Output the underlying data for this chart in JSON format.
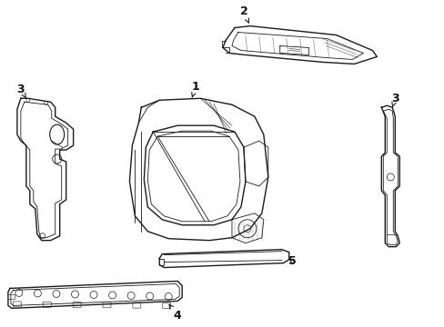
{
  "background_color": "#ffffff",
  "line_color": "#1a1a1a",
  "label_color": "#111111",
  "fig_width": 4.89,
  "fig_height": 3.6,
  "dpi": 100
}
